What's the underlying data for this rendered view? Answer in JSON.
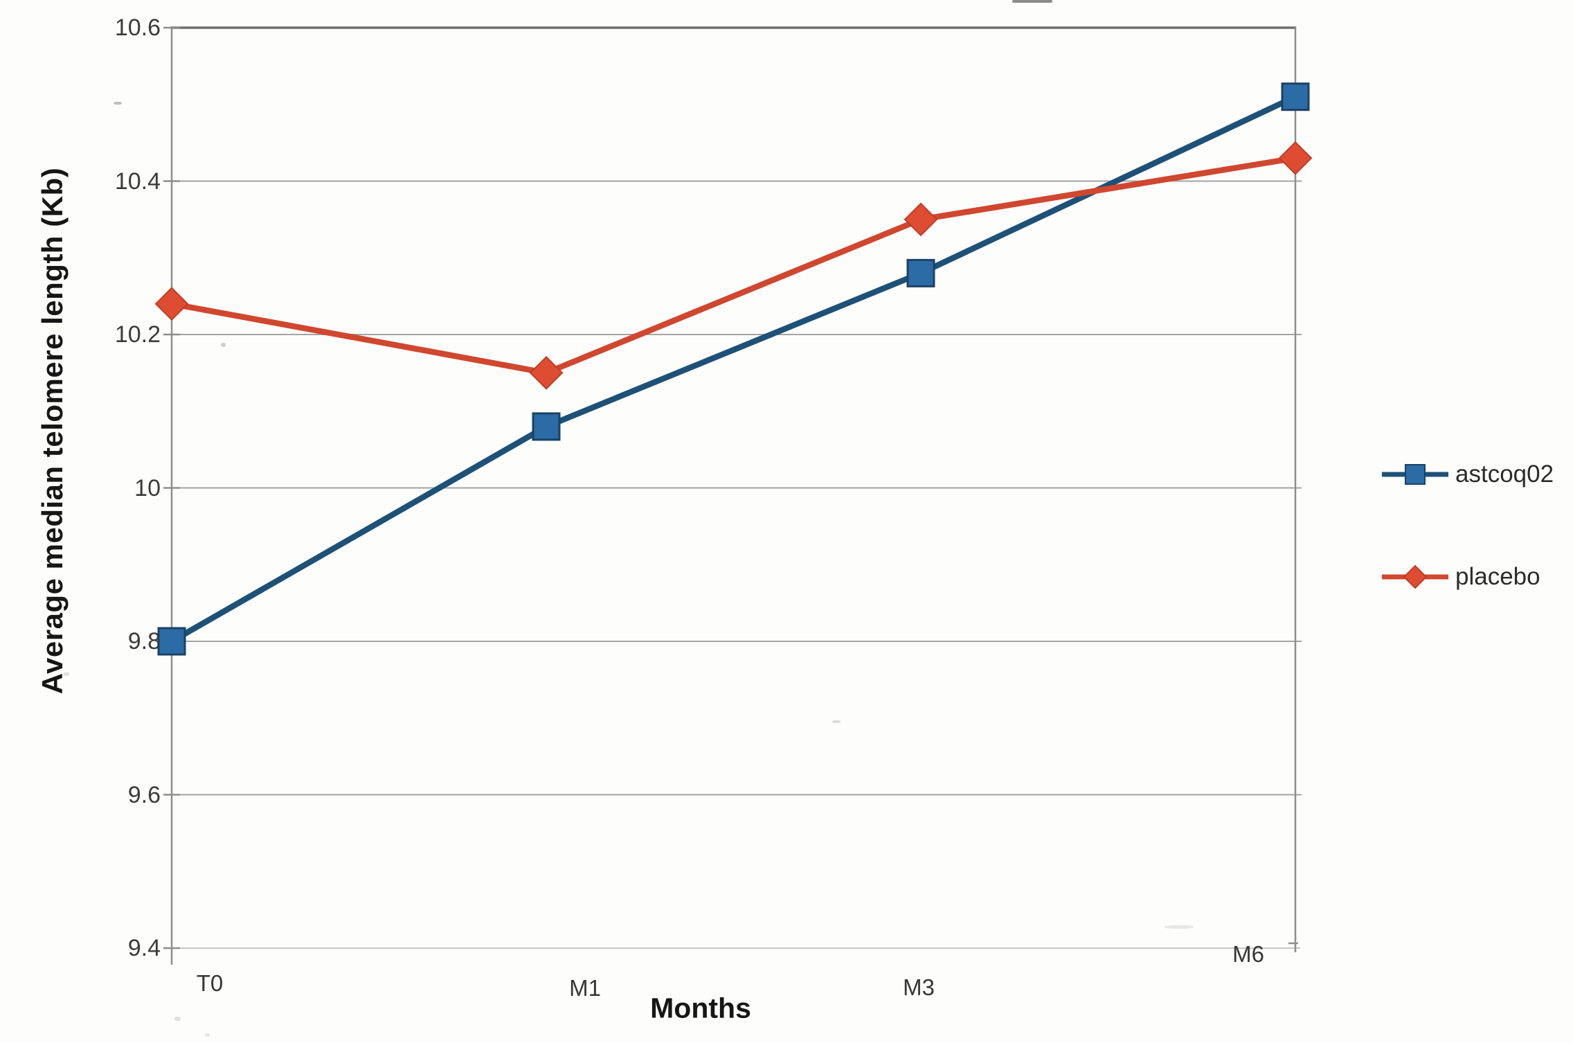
{
  "chart_data": {
    "type": "line",
    "title": "",
    "categories": [
      "T0",
      "M1",
      "M3",
      "M6"
    ],
    "series": [
      {
        "name": "astcoq02",
        "values": [
          9.8,
          10.08,
          10.28,
          10.51
        ],
        "color": "#1e5177",
        "marker": "square",
        "marker_fill": "#2b6ca6",
        "marker_stroke": "#1b4266"
      },
      {
        "name": "placebo",
        "values": [
          10.24,
          10.15,
          10.35,
          10.43
        ],
        "color": "#d0472f",
        "marker": "diamond",
        "marker_fill": "#de4c31",
        "marker_stroke": "#c23d28"
      }
    ],
    "xlabel": "Months",
    "ylabel": "Average median telomere length (Kb)",
    "ylim": [
      9.4,
      10.6
    ],
    "ytick_step": 0.2,
    "yticks": [
      "10.6",
      "10.4",
      "10.2",
      "10",
      "9.8",
      "9.6",
      "9.4"
    ],
    "grid": true,
    "legend_position": "right-middle",
    "colors": {
      "gridline": "#a4a4a4",
      "axis": "#8d8d8d",
      "top_border": "#6e6e6e",
      "bottom_border": "#c6c6c6",
      "tick_text": "#3b3b3b"
    }
  }
}
